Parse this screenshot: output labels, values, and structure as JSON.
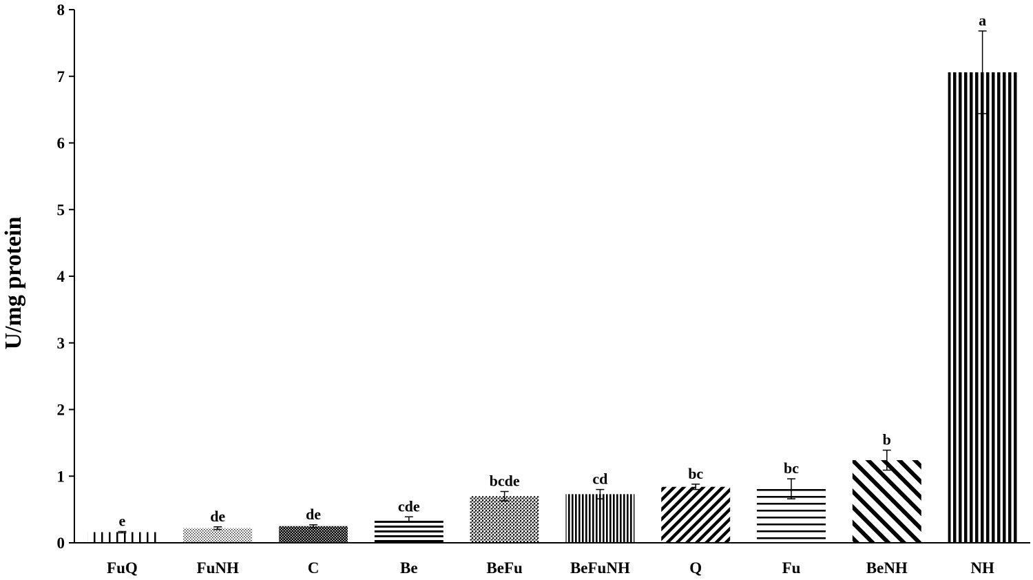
{
  "chart_data": {
    "type": "bar",
    "title": "",
    "xlabel": "",
    "ylabel": "U/mg protein",
    "ylim": [
      0,
      8
    ],
    "yticks": [
      "0",
      "1",
      "2",
      "3",
      "4",
      "5",
      "6",
      "7",
      "8"
    ],
    "grid": false,
    "legend": "none",
    "categories": [
      "FuQ",
      "FuNH",
      "C",
      "Be",
      "BeFu",
      "BeFuNH",
      "Q",
      "Fu",
      "BeNH",
      "NH"
    ],
    "values": [
      0.16,
      0.22,
      0.25,
      0.35,
      0.7,
      0.73,
      0.84,
      0.81,
      1.24,
      7.06
    ],
    "errors": [
      0.01,
      0.02,
      0.02,
      0.04,
      0.07,
      0.07,
      0.04,
      0.15,
      0.15,
      0.62
    ],
    "significance": [
      "e",
      "de",
      "de",
      "cde",
      "bcde",
      "cd",
      "bc",
      "bc",
      "b",
      "a"
    ],
    "patterns": [
      "short-vertical",
      "dots",
      "checker",
      "horizontal",
      "fine-grid",
      "vertical-dense",
      "diagonal-up",
      "horizontal-wide",
      "diagonal-down",
      "vertical-bold"
    ],
    "color": "#000000"
  }
}
